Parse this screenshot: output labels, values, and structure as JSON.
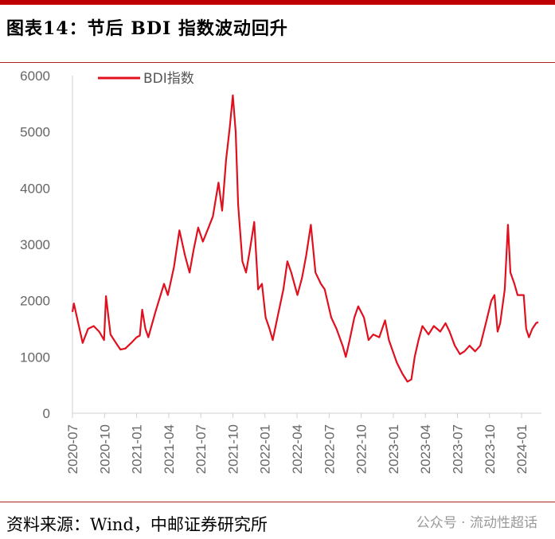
{
  "title": "图表14：节后 BDI 指数波动回升",
  "source": "资料来源：Wind，中邮证券研究所",
  "watermark": "公众号 · 流动性超话",
  "chart_data": {
    "type": "line",
    "title": "",
    "xlabel": "",
    "ylabel": "",
    "ylim": [
      0,
      6000
    ],
    "yticks": [
      "0",
      "1000",
      "2000",
      "3000",
      "4000",
      "5000",
      "6000"
    ],
    "xticks": [
      "2020-07",
      "2020-10",
      "2021-01",
      "2021-04",
      "2021-07",
      "2021-10",
      "2022-01",
      "2022-04",
      "2022-07",
      "2022-10",
      "2023-01",
      "2023-04",
      "2023-07",
      "2023-10",
      "2024-01"
    ],
    "grid": false,
    "legend_position": "top-left",
    "color": "#e0101e",
    "series": [
      {
        "name": "BDI指数",
        "points": [
          [
            "2020-07-01",
            1800
          ],
          [
            "2020-07-05",
            1950
          ],
          [
            "2020-07-14",
            1700
          ],
          [
            "2020-07-30",
            1250
          ],
          [
            "2020-08-15",
            1500
          ],
          [
            "2020-08-31",
            1550
          ],
          [
            "2020-09-16",
            1450
          ],
          [
            "2020-09-30",
            1300
          ],
          [
            "2020-10-05",
            2080
          ],
          [
            "2020-10-18",
            1400
          ],
          [
            "2020-11-03",
            1250
          ],
          [
            "2020-11-16",
            1130
          ],
          [
            "2020-11-30",
            1150
          ],
          [
            "2020-12-16",
            1250
          ],
          [
            "2021-01-01",
            1350
          ],
          [
            "2021-01-10",
            1380
          ],
          [
            "2021-01-17",
            1840
          ],
          [
            "2021-01-26",
            1500
          ],
          [
            "2021-02-04",
            1350
          ],
          [
            "2021-02-24",
            1800
          ],
          [
            "2021-03-18",
            2300
          ],
          [
            "2021-03-29",
            2100
          ],
          [
            "2021-04-16",
            2600
          ],
          [
            "2021-05-01",
            3250
          ],
          [
            "2021-05-17",
            2800
          ],
          [
            "2021-05-30",
            2500
          ],
          [
            "2021-06-11",
            2900
          ],
          [
            "2021-06-24",
            3300
          ],
          [
            "2021-07-07",
            3050
          ],
          [
            "2021-07-23",
            3300
          ],
          [
            "2021-08-05",
            3500
          ],
          [
            "2021-08-21",
            4100
          ],
          [
            "2021-09-01",
            3600
          ],
          [
            "2021-09-12",
            4500
          ],
          [
            "2021-09-23",
            5100
          ],
          [
            "2021-10-01",
            5650
          ],
          [
            "2021-10-09",
            5000
          ],
          [
            "2021-10-16",
            3700
          ],
          [
            "2021-10-28",
            2700
          ],
          [
            "2021-11-08",
            2500
          ],
          [
            "2021-11-19",
            2900
          ],
          [
            "2021-12-01",
            3400
          ],
          [
            "2021-12-12",
            2200
          ],
          [
            "2021-12-23",
            2300
          ],
          [
            "2022-01-03",
            1700
          ],
          [
            "2022-01-14",
            1500
          ],
          [
            "2022-01-23",
            1300
          ],
          [
            "2022-02-06",
            1700
          ],
          [
            "2022-02-23",
            2200
          ],
          [
            "2022-03-04",
            2700
          ],
          [
            "2022-03-15",
            2500
          ],
          [
            "2022-04-02",
            2100
          ],
          [
            "2022-04-15",
            2400
          ],
          [
            "2022-04-27",
            2800
          ],
          [
            "2022-05-10",
            3350
          ],
          [
            "2022-05-23",
            2500
          ],
          [
            "2022-06-08",
            2300
          ],
          [
            "2022-06-19",
            2200
          ],
          [
            "2022-07-07",
            1700
          ],
          [
            "2022-07-22",
            1500
          ],
          [
            "2022-08-09",
            1200
          ],
          [
            "2022-08-18",
            1000
          ],
          [
            "2022-08-29",
            1300
          ],
          [
            "2022-09-12",
            1700
          ],
          [
            "2022-09-23",
            1900
          ],
          [
            "2022-10-09",
            1700
          ],
          [
            "2022-10-22",
            1300
          ],
          [
            "2022-11-05",
            1400
          ],
          [
            "2022-11-22",
            1350
          ],
          [
            "2022-12-08",
            1650
          ],
          [
            "2022-12-19",
            1300
          ],
          [
            "2023-01-11",
            900
          ],
          [
            "2023-01-27",
            700
          ],
          [
            "2023-02-11",
            560
          ],
          [
            "2023-02-22",
            600
          ],
          [
            "2023-03-01",
            1000
          ],
          [
            "2023-03-12",
            1300
          ],
          [
            "2023-03-23",
            1550
          ],
          [
            "2023-04-10",
            1400
          ],
          [
            "2023-04-25",
            1550
          ],
          [
            "2023-05-13",
            1450
          ],
          [
            "2023-05-28",
            1600
          ],
          [
            "2023-06-09",
            1450
          ],
          [
            "2023-06-24",
            1200
          ],
          [
            "2023-07-08",
            1050
          ],
          [
            "2023-07-21",
            1100
          ],
          [
            "2023-08-05",
            1200
          ],
          [
            "2023-08-21",
            1100
          ],
          [
            "2023-09-05",
            1200
          ],
          [
            "2023-09-21",
            1600
          ],
          [
            "2023-10-06",
            2000
          ],
          [
            "2023-10-15",
            2100
          ],
          [
            "2023-10-24",
            1450
          ],
          [
            "2023-11-01",
            1600
          ],
          [
            "2023-11-14",
            2200
          ],
          [
            "2023-11-23",
            3350
          ],
          [
            "2023-11-30",
            2500
          ],
          [
            "2023-12-11",
            2300
          ],
          [
            "2023-12-20",
            2100
          ],
          [
            "2024-01-07",
            2100
          ],
          [
            "2024-01-14",
            1500
          ],
          [
            "2024-01-22",
            1350
          ],
          [
            "2024-02-01",
            1500
          ],
          [
            "2024-02-12",
            1600
          ],
          [
            "2024-02-18",
            1620
          ]
        ]
      }
    ]
  }
}
